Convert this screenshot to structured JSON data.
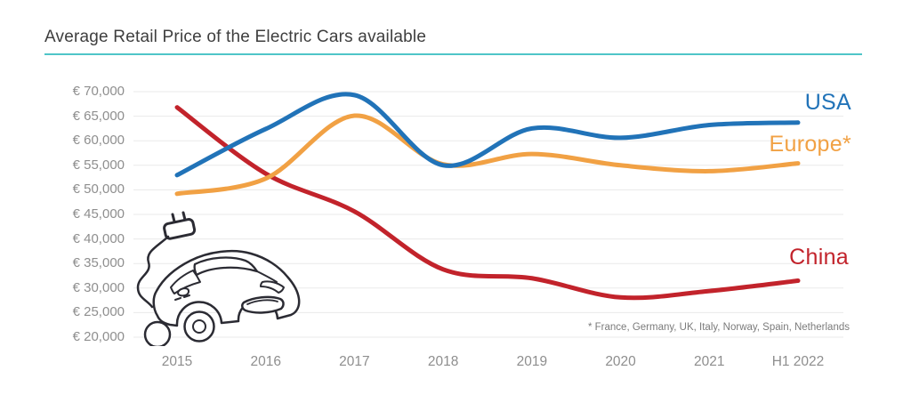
{
  "header": {
    "title": "Average Retail Price of the Electric Cars available",
    "underline_color": "#4fc5c8"
  },
  "footnote": "* France, Germany, UK, Italy, Norway, Spain, Netherlands",
  "illustration": {
    "icon": "electric-car-with-charging-plug-icon",
    "stroke_color": "#2b2b33"
  },
  "chart_data": {
    "type": "line",
    "title": "Average Retail Price of the Electric Cars available",
    "x_categories": [
      "2015",
      "2016",
      "2017",
      "2018",
      "2019",
      "2020",
      "2021",
      "H1 2022"
    ],
    "y_tick_labels": [
      "€ 70,000",
      "€ 65,000",
      "€ 60,000",
      "€ 55,000",
      "€ 50,000",
      "€ 45,000",
      "€ 40,000",
      "€ 35,000",
      "€ 30,000",
      "€ 25,000",
      "€ 20,000"
    ],
    "ylim": [
      20000,
      70000
    ],
    "y_step": 5000,
    "currency": "EUR",
    "grid": "horizontal",
    "gridline_color": "#eaeaea",
    "legend_position": "line-end-labels",
    "series": [
      {
        "name": "USA",
        "color": "#2173b8",
        "values": [
          53000,
          62400,
          69300,
          55000,
          62500,
          60600,
          63200,
          63700
        ]
      },
      {
        "name": "Europe*",
        "color": "#f1a144",
        "values": [
          49200,
          52300,
          65100,
          55200,
          57300,
          55000,
          53800,
          55400
        ]
      },
      {
        "name": "China",
        "color": "#c2232b",
        "values": [
          66800,
          53300,
          45600,
          33800,
          32000,
          28100,
          29400,
          31500
        ]
      }
    ]
  }
}
